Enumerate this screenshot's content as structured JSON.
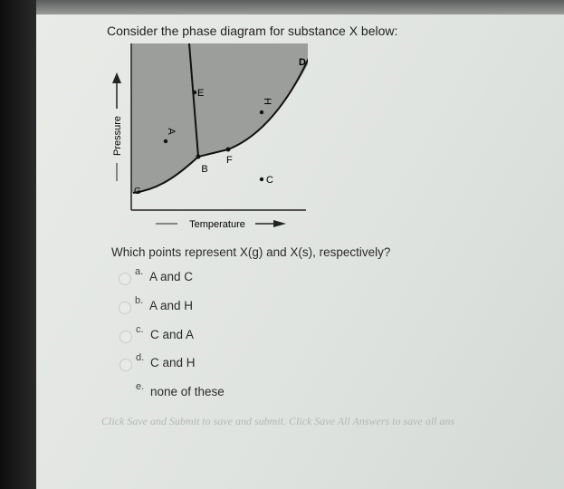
{
  "question": "Consider the phase diagram for substance X below:",
  "diagram": {
    "points": [
      "A",
      "B",
      "C",
      "D",
      "E",
      "F",
      "G",
      "H"
    ],
    "y_axis_label": "Pressure",
    "x_axis_label": "Temperature"
  },
  "prompt": "Which points represent X(g) and X(s), respectively?",
  "options": [
    {
      "letter": "a.",
      "text": "A and C"
    },
    {
      "letter": "b.",
      "text": "A and H"
    },
    {
      "letter": "c.",
      "text": "C and A"
    },
    {
      "letter": "d.",
      "text": "C and H"
    },
    {
      "letter": "e.",
      "text": "none of these"
    }
  ],
  "footer": "Click Save and Submit to save and submit. Click Save All Answers to save all ans"
}
